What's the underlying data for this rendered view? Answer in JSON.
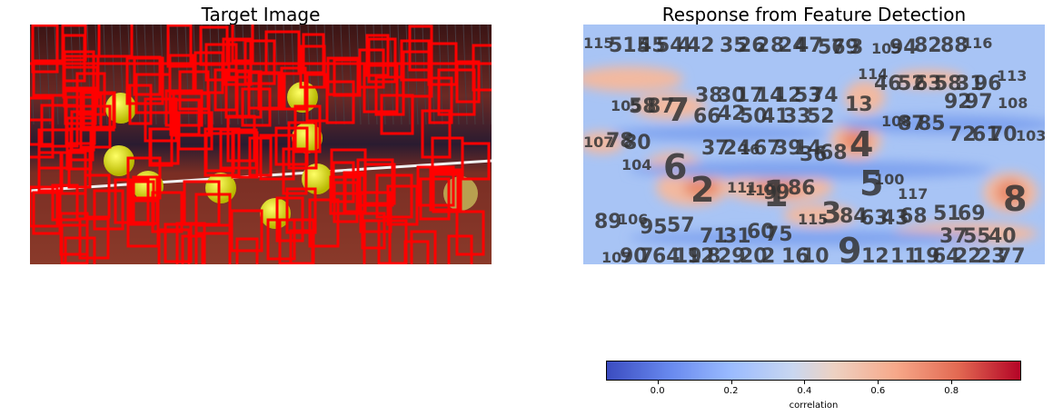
{
  "left": {
    "title": "Target Image",
    "image_desc_icon": "tennis-balls-on-clay-court-photo"
  },
  "right": {
    "title": "Response from Feature Detection"
  },
  "colorbar": {
    "label": "correlation",
    "ticks": [
      "0.0",
      "0.2",
      "0.4",
      "0.6",
      "0.8"
    ],
    "tick_values": [
      0.0,
      0.2,
      0.4,
      0.6,
      0.8
    ],
    "range": [
      -0.14,
      0.99
    ],
    "colormap": "coolwarm"
  },
  "chart_data": {
    "type": "heatmap",
    "title": "Response from Feature Detection",
    "colorbar_label": "correlation",
    "value_range": [
      -0.14,
      0.99
    ],
    "annotations": [
      "1",
      "2",
      "3",
      "4",
      "5",
      "6",
      "7",
      "8",
      "9",
      "13",
      "40",
      "89",
      "100",
      "103",
      "104",
      "105",
      "106",
      "108",
      "113",
      "114",
      "115",
      "116",
      "117",
      "110"
    ]
  },
  "colors": {
    "detection_box": "#ff0000",
    "court": "#5a1a14",
    "ball": "#e8e820",
    "text_labels": "#333333"
  }
}
